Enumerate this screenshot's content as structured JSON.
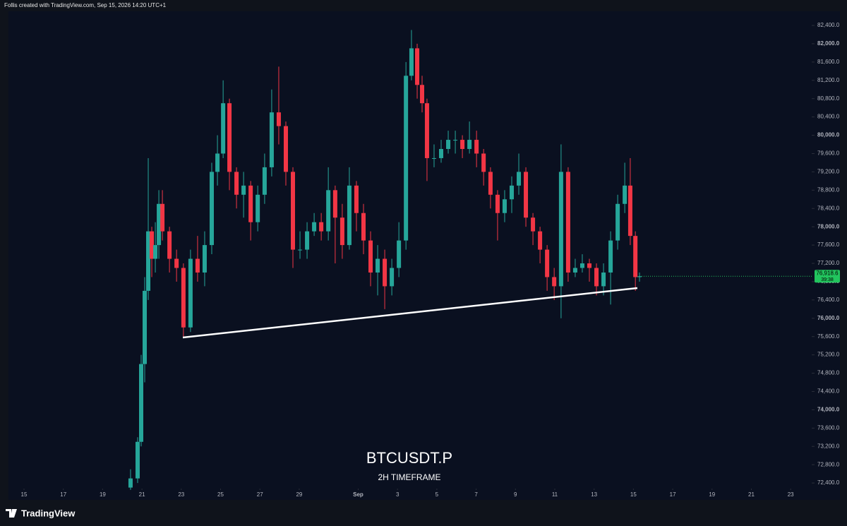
{
  "chart_data": {
    "type": "candlestick",
    "header": "Follis created with TradingView.com, Sep 15, 2026 14:20 UTC+1",
    "watermark_title": "BTCUSDT.P",
    "watermark_subtitle": "2H TIMEFRAME",
    "brand": "TradingView",
    "up_color": "#26a69a",
    "down_color": "#f23645",
    "x": [
      5.42,
      5.78,
      5.96,
      6.14,
      6.32,
      6.5,
      6.68,
      6.86,
      7.04,
      7.4,
      7.76,
      8.11,
      8.47,
      8.83,
      9.19,
      9.55,
      9.84,
      10.13,
      10.45,
      10.81,
      11.17,
      11.53,
      11.89,
      12.24,
      12.6,
      12.96,
      13.32,
      13.68,
      14.04,
      14.4,
      14.76,
      15.12,
      15.48,
      15.83,
      16.19,
      16.55,
      16.91,
      17.27,
      17.63,
      17.99,
      18.35,
      18.71,
      19.07,
      19.43,
      19.71,
      20.0,
      20.25,
      20.5,
      20.86,
      21.22,
      21.58,
      21.94,
      22.3,
      22.66,
      23.02,
      23.38,
      23.73,
      24.09,
      24.45,
      24.81,
      25.17,
      25.53,
      25.89,
      26.25,
      26.61,
      26.97,
      27.32,
      27.68,
      28.04,
      28.4,
      28.76,
      29.12,
      29.48,
      29.84,
      30.2,
      30.56,
      30.84,
      31.1,
      31.31
    ],
    "open": [
      72300,
      72500,
      73300,
      75000,
      76600,
      77900,
      77300,
      77600,
      78500,
      77900,
      77300,
      77100,
      75800,
      77300,
      77000,
      77600,
      79200,
      79600,
      80700,
      79200,
      78700,
      78900,
      78100,
      78700,
      79300,
      80500,
      80200,
      79200,
      77500,
      77500,
      77900,
      78100,
      77900,
      78800,
      78200,
      77600,
      78900,
      78300,
      77700,
      77000,
      77300,
      76700,
      77100,
      77700,
      81300,
      81900,
      81100,
      80700,
      79500,
      79500,
      79700,
      79900,
      79900,
      79700,
      79900,
      79600,
      79200,
      78700,
      78300,
      78600,
      78900,
      79200,
      78200,
      77900,
      77500,
      76900,
      76700,
      79200,
      77000,
      77100,
      77200,
      77100,
      76700,
      77000,
      77700,
      78500,
      78900,
      77800,
      76900
    ],
    "high": [
      72700,
      73400,
      75200,
      76900,
      79500,
      78000,
      78100,
      78800,
      78800,
      78000,
      77500,
      77200,
      77500,
      77800,
      77900,
      79400,
      80000,
      81200,
      80800,
      79300,
      79200,
      79000,
      78900,
      79600,
      81000,
      81500,
      80300,
      79300,
      77900,
      78100,
      78300,
      78300,
      79300,
      78900,
      78500,
      79300,
      79000,
      78500,
      77900,
      77600,
      77500,
      77300,
      78100,
      81600,
      82300,
      82000,
      81300,
      80800,
      79800,
      79900,
      80100,
      80100,
      80000,
      80300,
      80100,
      79700,
      79300,
      78800,
      78800,
      79100,
      79600,
      79300,
      78300,
      78000,
      77600,
      77100,
      79800,
      79300,
      77300,
      77400,
      77300,
      77200,
      77200,
      77900,
      78700,
      79400,
      79500,
      77900,
      77000
    ],
    "low": [
      72250,
      72400,
      73200,
      74600,
      76400,
      76900,
      77000,
      77300,
      77700,
      77000,
      76800,
      75600,
      75700,
      76800,
      76700,
      77400,
      78900,
      79500,
      78800,
      78400,
      78200,
      77700,
      77900,
      78500,
      79100,
      79800,
      78900,
      77100,
      77300,
      77300,
      77800,
      77700,
      77700,
      77200,
      77300,
      77500,
      77900,
      77400,
      76700,
      76500,
      76200,
      76500,
      76900,
      77500,
      81200,
      80800,
      80500,
      79000,
      79300,
      79400,
      79600,
      79600,
      79500,
      79600,
      79300,
      78900,
      78400,
      77700,
      78100,
      78300,
      78700,
      78000,
      77600,
      77200,
      76600,
      76400,
      76000,
      76800,
      76900,
      77000,
      76800,
      76500,
      76500,
      76300,
      77500,
      78300,
      77600,
      76600,
      76800
    ],
    "close": [
      72500,
      73300,
      75000,
      76600,
      77900,
      77300,
      77600,
      78500,
      77900,
      77300,
      77100,
      75800,
      77300,
      77000,
      77600,
      79200,
      79600,
      80700,
      79200,
      78700,
      78900,
      78100,
      78700,
      79300,
      80500,
      80200,
      79200,
      77500,
      77500,
      77900,
      78100,
      77900,
      78800,
      78200,
      77600,
      78900,
      78300,
      77700,
      77000,
      77300,
      76700,
      77100,
      77700,
      81300,
      81900,
      81100,
      80700,
      79500,
      79500,
      79700,
      79900,
      79900,
      79700,
      79900,
      79600,
      79200,
      78700,
      78300,
      78600,
      78900,
      79200,
      78200,
      77900,
      77500,
      76900,
      76700,
      79200,
      77000,
      77100,
      77200,
      77100,
      76700,
      77000,
      77700,
      78500,
      78900,
      77800,
      76900,
      76918.6
    ],
    "xlim": [
      -0.79,
      40.07
    ],
    "xticks": [
      {
        "value": 0,
        "label": "15"
      },
      {
        "value": 2,
        "label": "17"
      },
      {
        "value": 4,
        "label": "19"
      },
      {
        "value": 6,
        "label": "21"
      },
      {
        "value": 8,
        "label": "23"
      },
      {
        "value": 10,
        "label": "25"
      },
      {
        "value": 12,
        "label": "27"
      },
      {
        "value": 14,
        "label": "29"
      },
      {
        "value": 17,
        "label": "Sep"
      },
      {
        "value": 19,
        "label": "3"
      },
      {
        "value": 21,
        "label": "5"
      },
      {
        "value": 23,
        "label": "7"
      },
      {
        "value": 25,
        "label": "9"
      },
      {
        "value": 27,
        "label": "11"
      },
      {
        "value": 29,
        "label": "13"
      },
      {
        "value": 31,
        "label": "15"
      },
      {
        "value": 33,
        "label": "17"
      },
      {
        "value": 35,
        "label": "19"
      },
      {
        "value": 37,
        "label": "21"
      },
      {
        "value": 39,
        "label": "23"
      }
    ],
    "ylim": [
      72278,
      82709
    ],
    "yticks": [
      {
        "value": 82400,
        "label": "82,400.0"
      },
      {
        "value": 82000,
        "label": "82,000.0"
      },
      {
        "value": 81600,
        "label": "81,600.0"
      },
      {
        "value": 81200,
        "label": "81,200.0"
      },
      {
        "value": 80800,
        "label": "80,800.0"
      },
      {
        "value": 80400,
        "label": "80,400.0"
      },
      {
        "value": 80000,
        "label": "80,000.0"
      },
      {
        "value": 79600,
        "label": "79,600.0"
      },
      {
        "value": 79200,
        "label": "79,200.0"
      },
      {
        "value": 78800,
        "label": "78,800.0"
      },
      {
        "value": 78400,
        "label": "78,400.0"
      },
      {
        "value": 78000,
        "label": "78,000.0"
      },
      {
        "value": 77600,
        "label": "77,600.0"
      },
      {
        "value": 77200,
        "label": "77,200.0"
      },
      {
        "value": 76800,
        "label": "76,800.0"
      },
      {
        "value": 76400,
        "label": "76,400.0"
      },
      {
        "value": 76000,
        "label": "76,000.0"
      },
      {
        "value": 75600,
        "label": "75,600.0"
      },
      {
        "value": 75200,
        "label": "75,200.0"
      },
      {
        "value": 74800,
        "label": "74,800.0"
      },
      {
        "value": 74400,
        "label": "74,400.0"
      },
      {
        "value": 74000,
        "label": "74,000.0"
      },
      {
        "value": 73600,
        "label": "73,600.0"
      },
      {
        "value": 73200,
        "label": "73,200.0"
      },
      {
        "value": 72800,
        "label": "72,800.0"
      },
      {
        "value": 72400,
        "label": "72,400.0"
      }
    ],
    "trendline": {
      "x": [
        8.08,
        31.2
      ],
      "y": [
        75580,
        76660
      ],
      "color": "#ffffff"
    },
    "last_price": {
      "value": 76918.6,
      "label": "76,918.6",
      "countdown": "39:38",
      "color": "#22c55e"
    }
  }
}
